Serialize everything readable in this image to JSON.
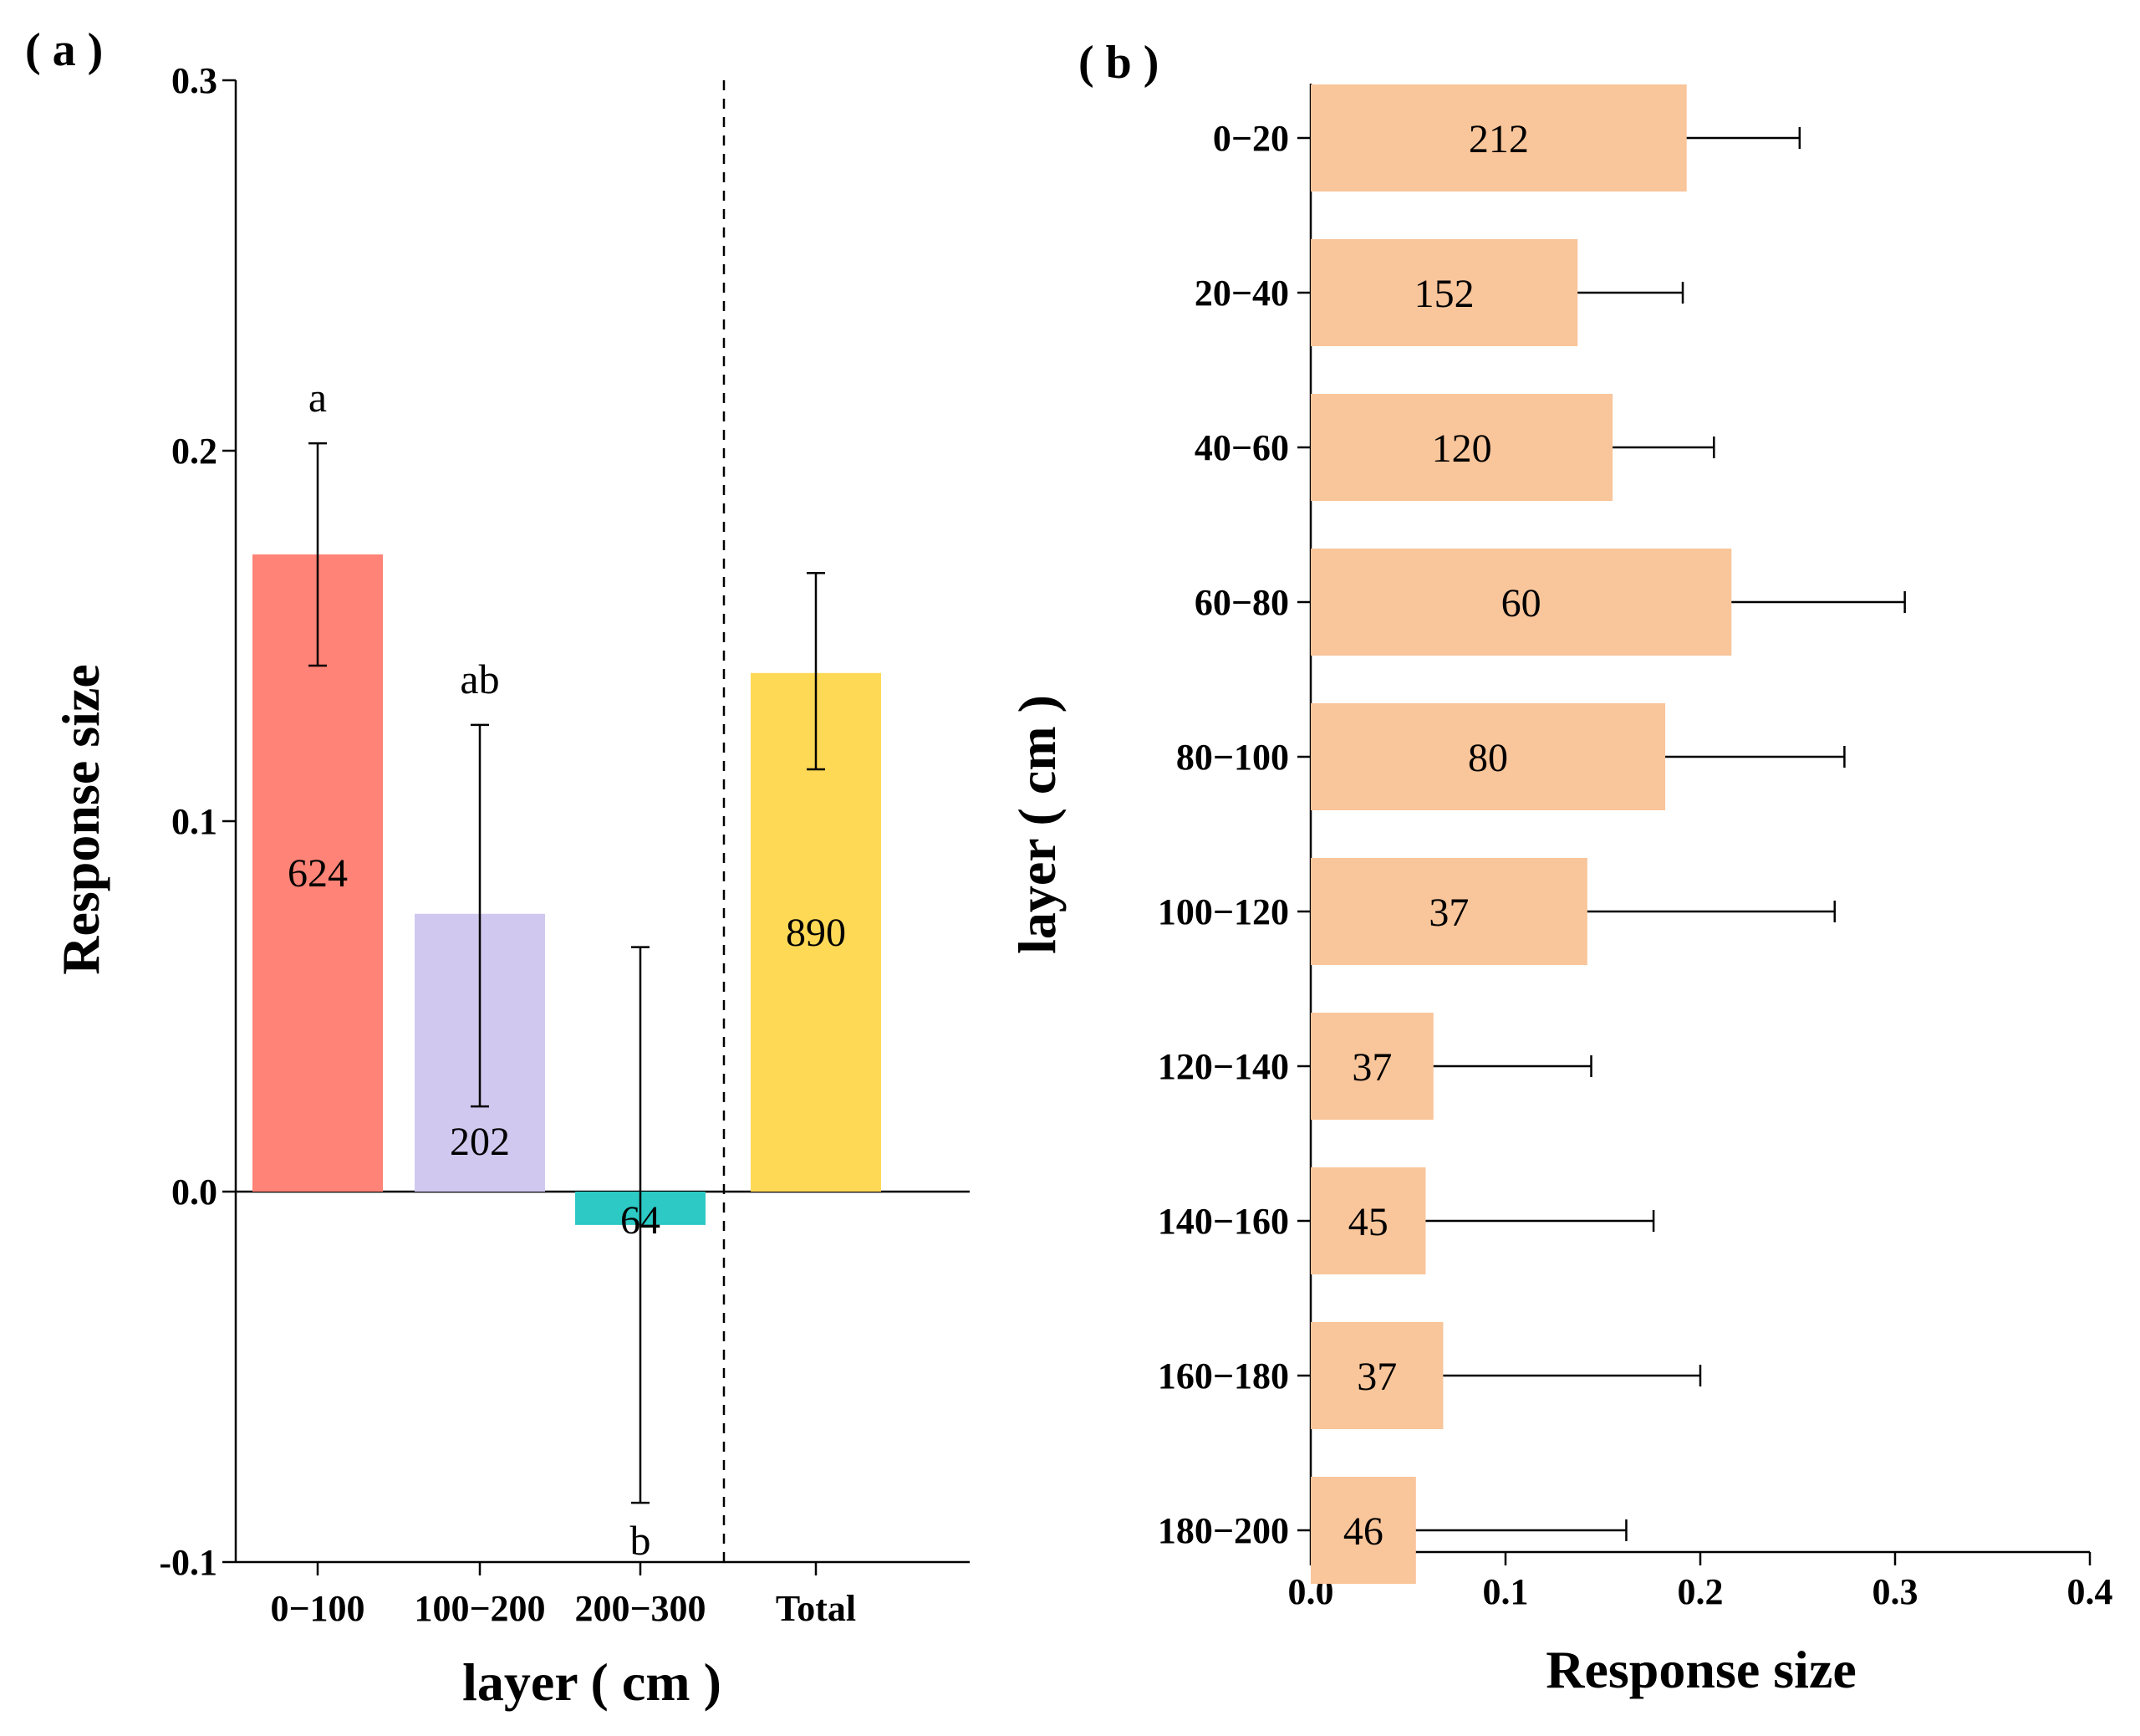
{
  "chart_data": [
    {
      "panel": "( a )",
      "type": "bar",
      "orientation": "vertical",
      "xlabel": "layer ( cm )",
      "ylabel": "Response size",
      "ylim": [
        -0.1,
        0.3
      ],
      "yticks": [
        "-0.1",
        "0.0",
        "0.1",
        "0.2",
        "0.3"
      ],
      "categories": [
        "0−100",
        "100−200",
        "200−300",
        "Total"
      ],
      "values": [
        0.172,
        0.075,
        -0.009,
        0.14
      ],
      "error_low": [
        0.142,
        0.023,
        -0.084,
        0.114
      ],
      "error_high": [
        0.202,
        0.126,
        0.066,
        0.167
      ],
      "bar_labels": [
        "624",
        "202",
        "64",
        "890"
      ],
      "significance": [
        "a",
        "ab",
        "b",
        ""
      ],
      "colors": [
        "#FF8376",
        "#D1C8F0",
        "#2DC9C4",
        "#FED956"
      ],
      "divider": "dashed line between 200−300 and Total"
    },
    {
      "panel": "( b )",
      "type": "bar",
      "orientation": "horizontal",
      "xlabel": "Response size",
      "ylabel": "layer ( cm )",
      "xlim": [
        0.0,
        0.4
      ],
      "xticks": [
        "0.0",
        "0.1",
        "0.2",
        "0.3",
        "0.4"
      ],
      "categories": [
        "0−20",
        "20−40",
        "40−60",
        "60−80",
        "80−100",
        "100−120",
        "120−140",
        "140−160",
        "160−180",
        "180−200"
      ],
      "values": [
        0.193,
        0.137,
        0.155,
        0.216,
        0.182,
        0.142,
        0.063,
        0.059,
        0.068,
        0.054
      ],
      "error_high": [
        0.251,
        0.191,
        0.207,
        0.305,
        0.274,
        0.269,
        0.144,
        0.176,
        0.2,
        0.162
      ],
      "bar_labels": [
        "212",
        "152",
        "120",
        "60",
        "80",
        "37",
        "37",
        "45",
        "37",
        "46"
      ],
      "color": "#F9C59A"
    }
  ]
}
